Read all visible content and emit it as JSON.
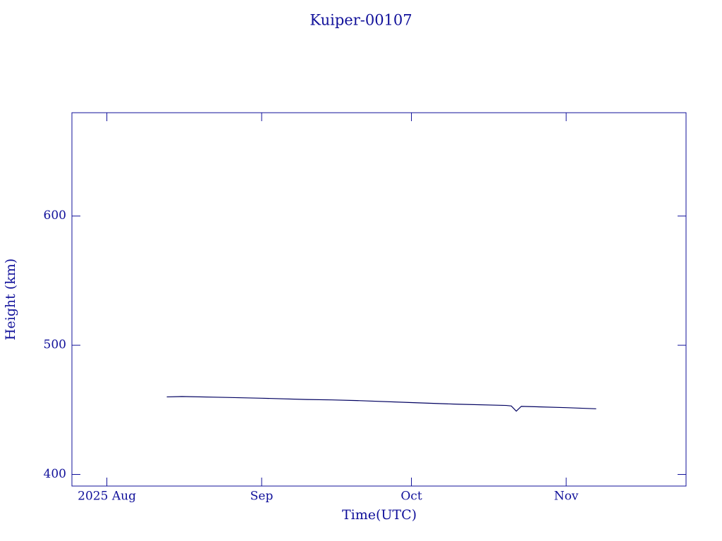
{
  "chart_data": {
    "type": "line",
    "title": "Kuiper-00107",
    "x_label": "Time(UTC)",
    "y_label": "Height (km)",
    "x": [
      "2025-08-13",
      "2025-08-16",
      "2025-08-25",
      "2025-09-01",
      "2025-09-10",
      "2025-09-15",
      "2025-09-20",
      "2025-10-01",
      "2025-10-10",
      "2025-10-20",
      "2025-10-21",
      "2025-10-22",
      "2025-10-23",
      "2025-11-01",
      "2025-11-07"
    ],
    "values": [
      460,
      460.3,
      459.6,
      459,
      458,
      457.7,
      457.2,
      455.6,
      454.4,
      453.4,
      453,
      449,
      452.7,
      451.7,
      450.8
    ],
    "color": "#000060",
    "xlim": [
      "2025-07-25",
      "2025-11-25"
    ],
    "xticks": [
      {
        "value": "2025-08-01",
        "label": "2025 Aug"
      },
      {
        "value": "2025-09-01",
        "label": "Sep"
      },
      {
        "value": "2025-10-01",
        "label": "Oct"
      },
      {
        "value": "2025-11-01",
        "label": "Nov"
      }
    ],
    "ylim": [
      391,
      680
    ],
    "yticks": [
      400,
      500,
      600
    ],
    "grid": false
  }
}
